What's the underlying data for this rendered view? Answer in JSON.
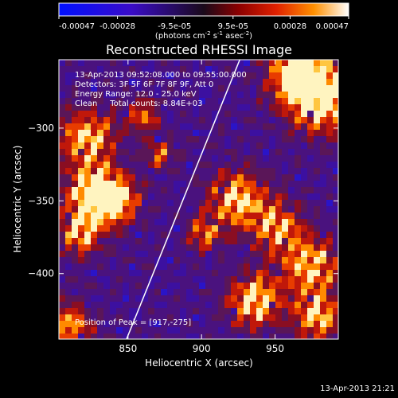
{
  "colorbar": {
    "ticks": [
      "-0.00047",
      "-0.00028",
      "-9.5e-05",
      "9.5e-05",
      "0.00028",
      "0.00047"
    ],
    "tick_values": [
      -0.00047,
      -0.00028,
      -9.5e-05,
      9.5e-05,
      0.00028,
      0.00047
    ],
    "range": [
      -0.00047,
      0.00047
    ],
    "units_main": "(photons cm",
    "units_sup1": "-2",
    "units_mid": " s",
    "units_sup2": "-1",
    "units_end": " asec",
    "units_sup3": "-2",
    "units_close": ")"
  },
  "chart_data": {
    "type": "heatmap",
    "title": "Reconstructed RHESSI Image",
    "xlabel": "Heliocentric X (arcsec)",
    "ylabel": "Heliocentric Y (arcsec)",
    "xlim": [
      803,
      993
    ],
    "ylim": [
      -445,
      -253
    ],
    "x_ticks": [
      850,
      900,
      950
    ],
    "y_ticks": [
      -300,
      -350,
      -400
    ],
    "annotations": [
      "13-Apr-2013 09:52:08.000 to 09:55:00.000",
      "Detectors: 3F 5F 6F 7F 8F 9F, Att 0",
      "Energy Range: 12.0 - 25.0 keV",
      "Clean     Total counts: 8.84E+03"
    ],
    "peak_label": "Position of Peak = [917,-275]",
    "peak": [
      917,
      -275
    ],
    "limb_line": [
      [
        849,
        -445
      ],
      [
        926,
        -253
      ]
    ]
  },
  "footer_timestamp": "13-Apr-2013 21:21",
  "colors": {
    "background": "#000000",
    "text": "#ffffff"
  }
}
